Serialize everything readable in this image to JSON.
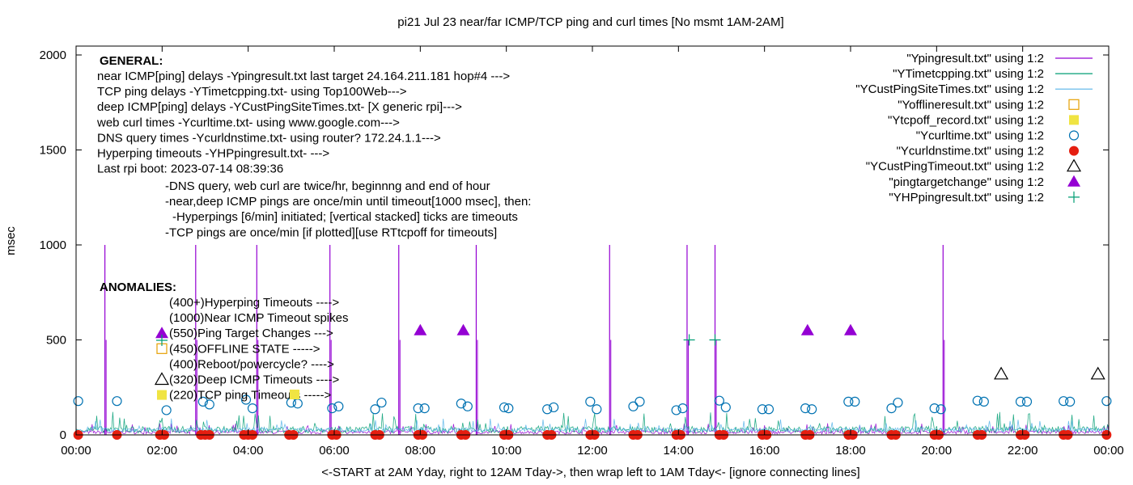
{
  "chart_data": {
    "type": "line",
    "title": "pi21 Jul 23  near/far ICMP/TCP ping and curl times [No msmt 1AM-2AM]",
    "xlabel": "<-START at 2AM Yday, right to 12AM Tday->, then wrap left to 1AM Tday<- [ignore connecting lines]",
    "ylabel": "msec",
    "xlim": [
      0,
      24
    ],
    "ylim": [
      0,
      2050
    ],
    "grid": false,
    "legend_position": "top-right",
    "x_ticks": [
      "00:00",
      "02:00",
      "04:00",
      "06:00",
      "08:00",
      "10:00",
      "12:00",
      "14:00",
      "16:00",
      "18:00",
      "20:00",
      "22:00",
      "00:00"
    ],
    "y_ticks": [
      0,
      500,
      1000,
      1500,
      2000
    ],
    "series": [
      {
        "name": "\"Ypingresult.txt\" using 1:2",
        "style": "line",
        "color": "#9400d3",
        "spikes": [
          {
            "x": 0.67,
            "y": 1000
          },
          {
            "x": 2.78,
            "y": 1000
          },
          {
            "x": 4.2,
            "y": 1000
          },
          {
            "x": 5.9,
            "y": 1000
          },
          {
            "x": 7.5,
            "y": 1000
          },
          {
            "x": 9.3,
            "y": 1000
          },
          {
            "x": 12.4,
            "y": 1000
          },
          {
            "x": 14.2,
            "y": 1000
          },
          {
            "x": 14.85,
            "y": 1000
          },
          {
            "x": 20.15,
            "y": 1000
          }
        ],
        "baseline_range": [
          5,
          40
        ]
      },
      {
        "name": "\"YTimetcpping.txt\" using 1:2",
        "style": "line",
        "color": "#009e73",
        "baseline_range": [
          10,
          80
        ]
      },
      {
        "name": "\"YCustPingSiteTimes.txt\" using 1:2",
        "style": "line",
        "color": "#56b4e9",
        "baseline_range": [
          15,
          60
        ]
      },
      {
        "name": "\"Yofflineresult.txt\" using 1:2",
        "style": "open-square",
        "color": "#e69f00",
        "points": []
      },
      {
        "name": "\"Ytcpoff_record.txt\" using 1:2",
        "style": "filled-square",
        "color": "#f0e442",
        "points": []
      },
      {
        "name": "\"Ycurltime.txt\" using 1:2",
        "style": "open-circle",
        "color": "#0072b2",
        "points": [
          {
            "x": 0.05,
            "y": 178
          },
          {
            "x": 0.95,
            "y": 178
          },
          {
            "x": 2.1,
            "y": 130
          },
          {
            "x": 2.95,
            "y": 175
          },
          {
            "x": 3.1,
            "y": 160
          },
          {
            "x": 3.95,
            "y": 185
          },
          {
            "x": 4.1,
            "y": 140
          },
          {
            "x": 5.0,
            "y": 170
          },
          {
            "x": 5.15,
            "y": 165
          },
          {
            "x": 5.95,
            "y": 140
          },
          {
            "x": 6.1,
            "y": 150
          },
          {
            "x": 6.95,
            "y": 135
          },
          {
            "x": 7.1,
            "y": 170
          },
          {
            "x": 7.95,
            "y": 140
          },
          {
            "x": 8.1,
            "y": 140
          },
          {
            "x": 8.95,
            "y": 165
          },
          {
            "x": 9.1,
            "y": 150
          },
          {
            "x": 9.95,
            "y": 145
          },
          {
            "x": 10.05,
            "y": 140
          },
          {
            "x": 10.95,
            "y": 135
          },
          {
            "x": 11.1,
            "y": 145
          },
          {
            "x": 11.95,
            "y": 175
          },
          {
            "x": 12.1,
            "y": 135
          },
          {
            "x": 12.95,
            "y": 150
          },
          {
            "x": 13.1,
            "y": 175
          },
          {
            "x": 13.95,
            "y": 130
          },
          {
            "x": 14.1,
            "y": 140
          },
          {
            "x": 14.95,
            "y": 180
          },
          {
            "x": 15.1,
            "y": 145
          },
          {
            "x": 15.95,
            "y": 135
          },
          {
            "x": 16.1,
            "y": 135
          },
          {
            "x": 16.95,
            "y": 140
          },
          {
            "x": 17.1,
            "y": 135
          },
          {
            "x": 17.95,
            "y": 175
          },
          {
            "x": 18.1,
            "y": 175
          },
          {
            "x": 18.95,
            "y": 140
          },
          {
            "x": 19.1,
            "y": 170
          },
          {
            "x": 19.95,
            "y": 140
          },
          {
            "x": 20.1,
            "y": 135
          },
          {
            "x": 20.95,
            "y": 180
          },
          {
            "x": 21.1,
            "y": 175
          },
          {
            "x": 21.95,
            "y": 175
          },
          {
            "x": 22.1,
            "y": 175
          },
          {
            "x": 22.95,
            "y": 178
          },
          {
            "x": 23.1,
            "y": 175
          },
          {
            "x": 23.95,
            "y": 178
          }
        ]
      },
      {
        "name": "\"Ycurldnstime.txt\" using 1:2",
        "style": "filled-circle",
        "color": "#e51e10",
        "points": [
          {
            "x": 0.05,
            "y": 0
          },
          {
            "x": 0.95,
            "y": 0
          },
          {
            "x": 1.95,
            "y": 0
          },
          {
            "x": 2.05,
            "y": 0
          },
          {
            "x": 2.9,
            "y": 0
          },
          {
            "x": 3.0,
            "y": 0
          },
          {
            "x": 3.1,
            "y": 0
          },
          {
            "x": 3.9,
            "y": 0
          },
          {
            "x": 4.0,
            "y": 0
          },
          {
            "x": 4.1,
            "y": 0
          },
          {
            "x": 4.95,
            "y": 0
          },
          {
            "x": 5.05,
            "y": 0
          },
          {
            "x": 5.95,
            "y": 0
          },
          {
            "x": 6.05,
            "y": 0
          },
          {
            "x": 6.95,
            "y": 0
          },
          {
            "x": 7.05,
            "y": 0
          },
          {
            "x": 7.95,
            "y": 0
          },
          {
            "x": 8.05,
            "y": 0
          },
          {
            "x": 8.95,
            "y": 0
          },
          {
            "x": 9.05,
            "y": 0
          },
          {
            "x": 9.95,
            "y": 0
          },
          {
            "x": 10.05,
            "y": 0
          },
          {
            "x": 10.95,
            "y": 0
          },
          {
            "x": 11.05,
            "y": 0
          },
          {
            "x": 11.95,
            "y": 0
          },
          {
            "x": 12.05,
            "y": 0
          },
          {
            "x": 12.95,
            "y": 0
          },
          {
            "x": 13.05,
            "y": 0
          },
          {
            "x": 13.95,
            "y": 0
          },
          {
            "x": 14.05,
            "y": 0
          },
          {
            "x": 14.95,
            "y": 0
          },
          {
            "x": 15.05,
            "y": 0
          },
          {
            "x": 15.95,
            "y": 0
          },
          {
            "x": 16.05,
            "y": 0
          },
          {
            "x": 16.95,
            "y": 0
          },
          {
            "x": 17.05,
            "y": 0
          },
          {
            "x": 17.95,
            "y": 0
          },
          {
            "x": 18.05,
            "y": 0
          },
          {
            "x": 18.95,
            "y": 0
          },
          {
            "x": 19.05,
            "y": 0
          },
          {
            "x": 19.95,
            "y": 0
          },
          {
            "x": 20.05,
            "y": 0
          },
          {
            "x": 20.95,
            "y": 0
          },
          {
            "x": 21.05,
            "y": 0
          },
          {
            "x": 21.95,
            "y": 0
          },
          {
            "x": 22.05,
            "y": 0
          },
          {
            "x": 22.95,
            "y": 0
          },
          {
            "x": 23.05,
            "y": 0
          },
          {
            "x": 23.95,
            "y": 0
          }
        ]
      },
      {
        "name": "\"YCustPingTimeout.txt\" using 1:2",
        "style": "open-triangle",
        "color": "#000000",
        "points": [
          {
            "x": 21.5,
            "y": 320
          },
          {
            "x": 23.75,
            "y": 320
          }
        ]
      },
      {
        "name": "\"pingtargetchange\" using 1:2",
        "style": "filled-triangle",
        "color": "#9400d3",
        "points": [
          {
            "x": 8.0,
            "y": 550
          },
          {
            "x": 9.0,
            "y": 550
          },
          {
            "x": 17.0,
            "y": 550
          },
          {
            "x": 18.0,
            "y": 550
          }
        ]
      },
      {
        "name": "\"YHPpingresult.txt\" using 1:2",
        "style": "plus",
        "color": "#009e73",
        "points": [
          {
            "x": 14.25,
            "y": 500
          },
          {
            "x": 14.85,
            "y": 500
          }
        ]
      }
    ],
    "annotations": {
      "general_heading": "GENERAL:",
      "general_lines": [
        "near ICMP[ping] delays -Ypingresult.txt last target 24.164.211.181 hop#4 --->",
        "TCP ping delays -YTimetcpping.txt- using Top100Web--->",
        "deep ICMP[ping] delays -YCustPingSiteTimes.txt- [X generic rpi]--->",
        "web curl times -Ycurltime.txt- using www.google.com--->",
        "DNS query times -Ycurldnstime.txt- using router? 172.24.1.1--->",
        "Hyperping timeouts -YHPpingresult.txt- --->",
        "Last rpi boot: 2023-07-14 08:39:36"
      ],
      "notes": [
        "-DNS query, web curl are twice/hr, beginnng and end of hour",
        "-near,deep ICMP pings are once/min until timeout[1000 msec], then:",
        "-Hyperpings [6/min] initiated; [vertical stacked] ticks are timeouts",
        "-TCP pings are once/min [if plotted][use RTtcpoff for timeouts]"
      ],
      "anomalies_heading": "ANOMALIES:",
      "anomalies": [
        {
          "text": "(400+)Hyperping Timeouts ---->",
          "marker": "none",
          "y": 400
        },
        {
          "text": "(1000)Near ICMP Timeout spikes",
          "marker": "none",
          "y": 1000
        },
        {
          "text": "(550)Ping Target Changes --->",
          "marker": "filled-triangle",
          "y": 550
        },
        {
          "text": "(450)OFFLINE STATE ----->",
          "marker": "open-square",
          "y": 450
        },
        {
          "text": "(400)Reboot/powercycle? ---->",
          "marker": "none",
          "y": 400
        },
        {
          "text": "(320)Deep ICMP Timeouts ---->",
          "marker": "open-triangle",
          "y": 320
        },
        {
          "text": "(220)TCP ping Timeouts ----->",
          "marker": "filled-square",
          "y": 220
        }
      ]
    }
  }
}
